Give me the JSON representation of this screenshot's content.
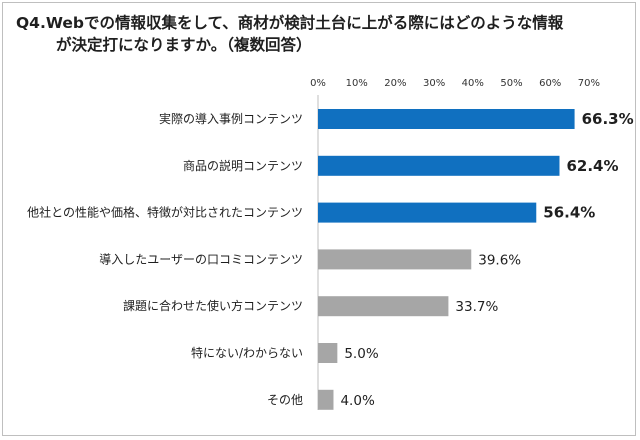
{
  "chart_data": {
    "type": "bar",
    "orientation": "horizontal",
    "title_line1": "Q4.Webでの情報収集をして、商材が検討土台に上がる際にはどのような情報",
    "title_line2": "が決定打になりますか。（複数回答）",
    "categories": [
      "実際の導入事例コンテンツ",
      "商品の説明コンテンツ",
      "他社との性能や価格、特徴が対比されたコンテンツ",
      "導入したユーザーの口コミコンテンツ",
      "課題に合わせた使い方コンテンツ",
      "特にない/わからない",
      "その他"
    ],
    "values": [
      66.3,
      62.4,
      56.4,
      39.6,
      33.7,
      5.0,
      4.0
    ],
    "value_labels": [
      "66.3%",
      "62.4%",
      "56.4%",
      "39.6%",
      "33.7%",
      "5.0%",
      "4.0%"
    ],
    "highlight": [
      true,
      true,
      true,
      false,
      false,
      false,
      false
    ],
    "xlim": [
      0,
      70
    ],
    "ticks": [
      0,
      10,
      20,
      30,
      40,
      50,
      60,
      70
    ],
    "tick_labels": [
      "0%",
      "10%",
      "20%",
      "30%",
      "40%",
      "50%",
      "60%",
      "70%"
    ],
    "colors": {
      "highlight": "#1070c0",
      "normal": "#a6a6a6",
      "axis": "#bfbfbf"
    }
  }
}
